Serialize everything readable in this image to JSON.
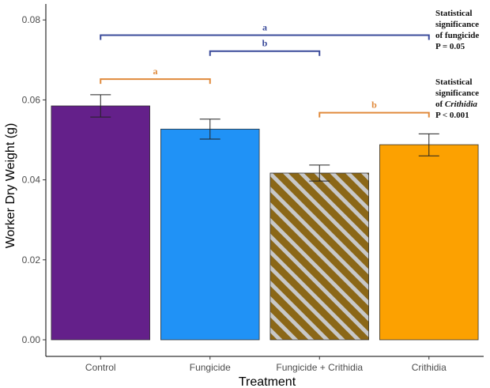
{
  "chart_data": {
    "type": "bar",
    "categories": [
      "Control",
      "Fungicide",
      "Fungicide + Crithidia",
      "Crithidia"
    ],
    "values": [
      0.0585,
      0.0527,
      0.0417,
      0.0488
    ],
    "error_low": [
      0.0557,
      0.0502,
      0.0397,
      0.046
    ],
    "error_high": [
      0.0613,
      0.0552,
      0.0437,
      0.0515
    ],
    "bar_colors": [
      "#64208a",
      "#2092f6",
      "#8b6717",
      "#fca101"
    ],
    "hatched_bar_index": 2,
    "hatch_color": "#c8c8c8",
    "xlabel": "Treatment",
    "ylabel": "Worker Dry Weight (g)",
    "ylim": [
      0,
      0.084
    ],
    "yticks": [
      0.0,
      0.02,
      0.04,
      0.06,
      0.08
    ],
    "ytick_labels": [
      "0.00",
      "0.02",
      "0.04",
      "0.06",
      "0.08"
    ],
    "grid": false,
    "legend": "none",
    "significance_brackets": [
      {
        "from": 0,
        "to": 3,
        "level": 0.0762,
        "label": "a",
        "color": "#3a4a9a"
      },
      {
        "from": 1,
        "to": 2,
        "level": 0.0722,
        "label": "b",
        "color": "#3a4a9a"
      },
      {
        "from": 0,
        "to": 1,
        "level": 0.0652,
        "label": "a",
        "color": "#e08a3c"
      },
      {
        "from": 2,
        "to": 3,
        "level": 0.0568,
        "label": "b",
        "color": "#e08a3c"
      }
    ],
    "annotations": {
      "fungicide": {
        "lines": [
          "Statistical",
          "significance",
          "of fungicide"
        ],
        "pvalue": "P  = 0.05",
        "pvalue_color": "#3a4a9a"
      },
      "crithidia": {
        "lines": [
          "Statistical",
          "significance"
        ],
        "of_prefix": "of ",
        "of_italic": "Crithidia",
        "pvalue": "P < 0.001",
        "pvalue_color": "#e08a3c"
      }
    }
  }
}
